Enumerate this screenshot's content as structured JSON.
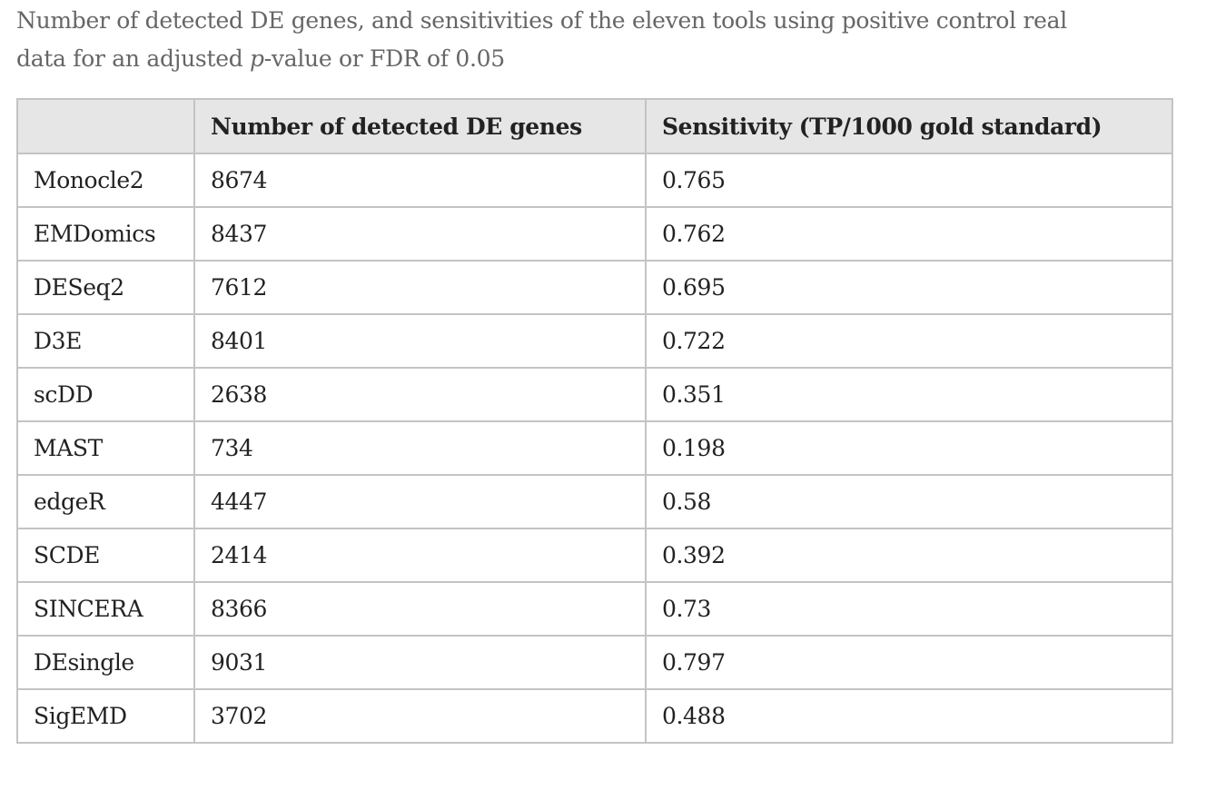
{
  "caption": {
    "line1": "Number of detected DE genes, and sensitivities of the eleven tools using positive control real",
    "line2_pre": "data for an adjusted ",
    "line2_italic": "p",
    "line2_post": "-value or FDR of 0.05"
  },
  "table": {
    "headers": [
      "",
      "Number of detected DE genes",
      "Sensitivity (TP/1000 gold standard)"
    ],
    "rows": [
      {
        "tool": "Monocle2",
        "de_genes": "8674",
        "sensitivity": "0.765"
      },
      {
        "tool": "EMDomics",
        "de_genes": "8437",
        "sensitivity": "0.762"
      },
      {
        "tool": "DESeq2",
        "de_genes": "7612",
        "sensitivity": "0.695"
      },
      {
        "tool": "D3E",
        "de_genes": "8401",
        "sensitivity": "0.722"
      },
      {
        "tool": "scDD",
        "de_genes": "2638",
        "sensitivity": "0.351"
      },
      {
        "tool": "MAST",
        "de_genes": "734",
        "sensitivity": "0.198"
      },
      {
        "tool": "edgeR",
        "de_genes": "4447",
        "sensitivity": "0.58"
      },
      {
        "tool": "SCDE",
        "de_genes": "2414",
        "sensitivity": "0.392"
      },
      {
        "tool": "SINCERA",
        "de_genes": "8366",
        "sensitivity": "0.73"
      },
      {
        "tool": "DEsingle",
        "de_genes": "9031",
        "sensitivity": "0.797"
      },
      {
        "tool": "SigEMD",
        "de_genes": "3702",
        "sensitivity": "0.488"
      }
    ]
  }
}
